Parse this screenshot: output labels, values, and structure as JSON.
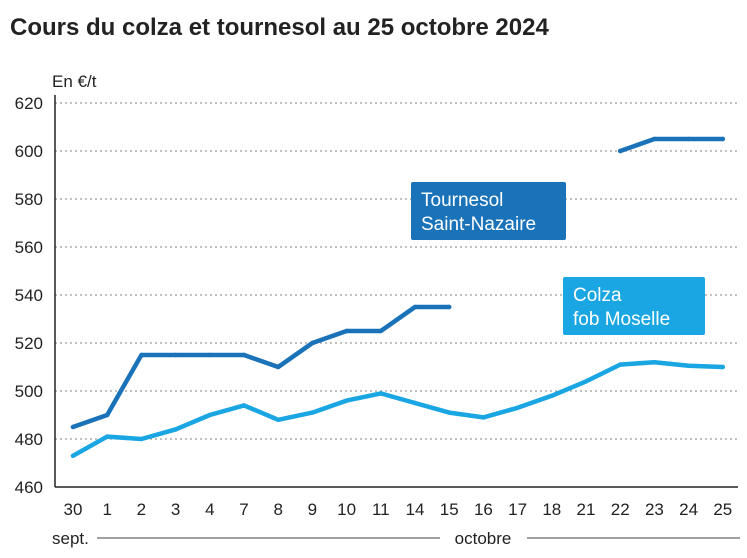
{
  "chart_data": {
    "type": "line",
    "title": "Cours du colza et tournesol au 25 octobre 2024",
    "ylabel": "En €/t",
    "ylim": [
      460,
      620
    ],
    "yticks": [
      460,
      480,
      500,
      520,
      540,
      560,
      580,
      600,
      620
    ],
    "grid": true,
    "categories": [
      "30",
      "1",
      "2",
      "3",
      "4",
      "7",
      "8",
      "9",
      "10",
      "11",
      "14",
      "15",
      "16",
      "17",
      "18",
      "21",
      "22",
      "23",
      "24",
      "25"
    ],
    "month_labels": [
      "sept.",
      "octobre"
    ],
    "series": [
      {
        "name": "Tournesol Saint-Nazaire",
        "label_lines": [
          "Tournesol",
          "Saint-Nazaire"
        ],
        "color": "#1a72b8",
        "values": [
          485,
          490,
          515,
          515,
          515,
          515,
          510,
          520,
          525,
          525,
          535,
          535,
          null,
          null,
          null,
          null,
          600,
          605,
          605,
          605
        ]
      },
      {
        "name": "Colza fob Moselle",
        "label_lines": [
          "Colza",
          "fob Moselle"
        ],
        "color": "#1aa6e2",
        "values": [
          473,
          481,
          480,
          484,
          490,
          494,
          488,
          491,
          496,
          499,
          495,
          491,
          489,
          493,
          498,
          504,
          511,
          512,
          510.5,
          510
        ]
      }
    ]
  }
}
